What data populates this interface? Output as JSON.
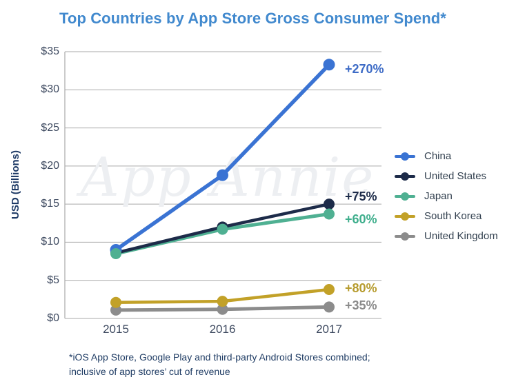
{
  "title": "Top Countries by App Store Gross Consumer Spend*",
  "watermark": "App Annie",
  "footnote": {
    "line1": "*iOS App Store, Google Play and third-party Android Stores combined;",
    "line2": "inclusive of app stores’ cut of revenue"
  },
  "colors": {
    "title": "#4189ce",
    "axis_text": "#3e4a60",
    "axis_title": "#1e3a66",
    "footnote": "#1f3c64",
    "gridline": "#a9a9a9",
    "watermark": "#edeff2",
    "legend_text": "#32404f"
  },
  "chart_data": {
    "type": "line",
    "title": "Top Countries by App Store Gross Consumer Spend*",
    "categories": [
      "2015",
      "2016",
      "2017"
    ],
    "xlabel": "",
    "ylabel": "USD (Billions)",
    "ylim": [
      0,
      35
    ],
    "y_ticks": [
      0,
      5,
      10,
      15,
      20,
      25,
      30,
      35
    ],
    "y_tick_prefix": "$",
    "grid": true,
    "legend_position": "right",
    "series": [
      {
        "name": "China",
        "color": "#3a73d3",
        "line_width": 5.5,
        "marker_radius": 8.5,
        "values": [
          9.0,
          18.8,
          33.3
        ],
        "annotation": "+270%",
        "annotation_color": "#3d6bc6",
        "annotation_dy": 6
      },
      {
        "name": "United States",
        "color": "#1d2b49",
        "line_width": 4.5,
        "marker_radius": 8,
        "values": [
          8.6,
          12.0,
          15.0
        ],
        "annotation": "+75%",
        "annotation_color": "#1d2b49",
        "annotation_dy": -11
      },
      {
        "name": "Japan",
        "color": "#4fb092",
        "line_width": 5,
        "marker_radius": 8,
        "values": [
          8.5,
          11.7,
          13.7
        ],
        "annotation": "+60%",
        "annotation_color": "#3eae8c",
        "annotation_dy": 7
      },
      {
        "name": "South Korea",
        "color": "#c2a128",
        "line_width": 4.5,
        "marker_radius": 8,
        "values": [
          2.1,
          2.25,
          3.8
        ],
        "annotation": "+80%",
        "annotation_color": "#b69b2d",
        "annotation_dy": -2
      },
      {
        "name": "United Kingdom",
        "color": "#8c8c8c",
        "line_width": 5,
        "marker_radius": 8,
        "values": [
          1.1,
          1.2,
          1.5
        ],
        "annotation": "+35%",
        "annotation_color": "#8a8a8a",
        "annotation_dy": -2
      }
    ]
  }
}
